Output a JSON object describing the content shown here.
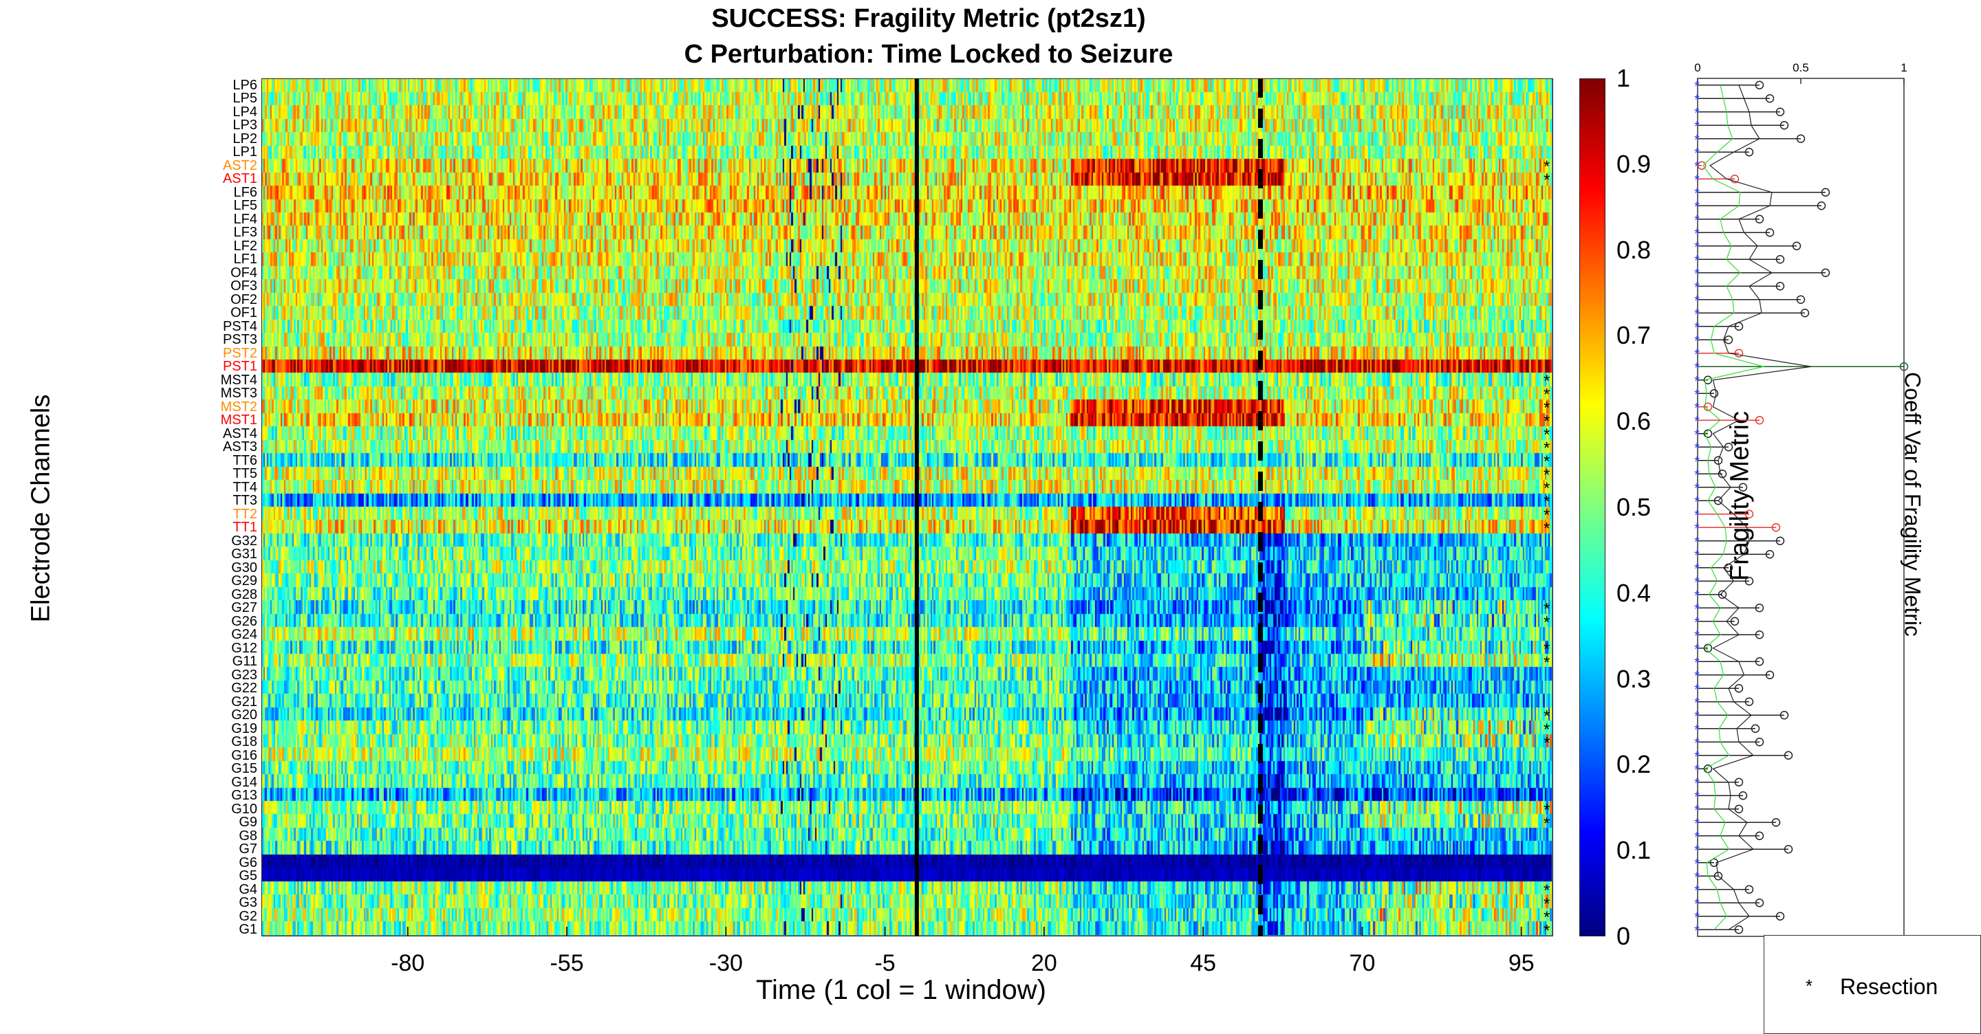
{
  "chart_data": {
    "type": "heatmap",
    "title": "SUCCESS: Fragility Metric (pt2sz1)",
    "subtitle": "C Perturbation:  Time Locked to Seizure",
    "xlabel": "Time (1 col = 1 window)",
    "ylabel": "Electrode Channels",
    "xticks": [
      "-80",
      "-55",
      "-30",
      "-5",
      "20",
      "45",
      "70",
      "95"
    ],
    "xlim": [
      -103,
      100
    ],
    "seizure_onset_marker": 0,
    "seizure_offset_marker": 54,
    "colorbar": {
      "label": "Fragility Metric",
      "ticks": [
        "0",
        "0.1",
        "0.2",
        "0.3",
        "0.4",
        "0.5",
        "0.6",
        "0.7",
        "0.8",
        "0.9",
        "1"
      ],
      "range": [
        0,
        1
      ],
      "colormap": "jet"
    },
    "channels": [
      {
        "name": "LP6",
        "label_color": "#000000",
        "resected": false,
        "base": 0.55,
        "cv": 0.3
      },
      {
        "name": "LP5",
        "label_color": "#000000",
        "resected": false,
        "base": 0.55,
        "cv": 0.35
      },
      {
        "name": "LP4",
        "label_color": "#000000",
        "resected": false,
        "base": 0.58,
        "cv": 0.4
      },
      {
        "name": "LP3",
        "label_color": "#000000",
        "resected": false,
        "base": 0.58,
        "cv": 0.42
      },
      {
        "name": "LP2",
        "label_color": "#000000",
        "resected": false,
        "base": 0.56,
        "cv": 0.5
      },
      {
        "name": "LP1",
        "label_color": "#000000",
        "resected": false,
        "base": 0.54,
        "cv": 0.25
      },
      {
        "name": "AST2",
        "label_color": "#ff8c00",
        "resected": true,
        "base": 0.62,
        "cv": 0.02
      },
      {
        "name": "AST1",
        "label_color": "#ff0000",
        "resected": true,
        "base": 0.62,
        "cv": 0.18
      },
      {
        "name": "LF6",
        "label_color": "#000000",
        "resected": false,
        "base": 0.66,
        "cv": 0.62
      },
      {
        "name": "LF5",
        "label_color": "#000000",
        "resected": false,
        "base": 0.64,
        "cv": 0.6
      },
      {
        "name": "LF4",
        "label_color": "#000000",
        "resected": false,
        "base": 0.62,
        "cv": 0.3
      },
      {
        "name": "LF3",
        "label_color": "#000000",
        "resected": false,
        "base": 0.62,
        "cv": 0.35
      },
      {
        "name": "LF2",
        "label_color": "#000000",
        "resected": false,
        "base": 0.6,
        "cv": 0.48
      },
      {
        "name": "LF1",
        "label_color": "#000000",
        "resected": false,
        "base": 0.6,
        "cv": 0.4
      },
      {
        "name": "OF4",
        "label_color": "#000000",
        "resected": false,
        "base": 0.58,
        "cv": 0.62
      },
      {
        "name": "OF3",
        "label_color": "#000000",
        "resected": false,
        "base": 0.58,
        "cv": 0.4
      },
      {
        "name": "OF2",
        "label_color": "#000000",
        "resected": false,
        "base": 0.57,
        "cv": 0.5
      },
      {
        "name": "OF1",
        "label_color": "#000000",
        "resected": false,
        "base": 0.56,
        "cv": 0.52
      },
      {
        "name": "PST4",
        "label_color": "#000000",
        "resected": false,
        "base": 0.52,
        "cv": 0.2
      },
      {
        "name": "PST3",
        "label_color": "#000000",
        "resected": false,
        "base": 0.55,
        "cv": 0.15
      },
      {
        "name": "PST2",
        "label_color": "#ff8c00",
        "resected": false,
        "base": 0.62,
        "cv": 0.2
      },
      {
        "name": "PST1",
        "label_color": "#ff0000",
        "resected": false,
        "base": 0.9,
        "cv": 1.0
      },
      {
        "name": "MST4",
        "label_color": "#000000",
        "resected": true,
        "base": 0.5,
        "cv": 0.05
      },
      {
        "name": "MST3",
        "label_color": "#000000",
        "resected": true,
        "base": 0.56,
        "cv": 0.08
      },
      {
        "name": "MST2",
        "label_color": "#ff8c00",
        "resected": true,
        "base": 0.6,
        "cv": 0.05
      },
      {
        "name": "MST1",
        "label_color": "#ff0000",
        "resected": true,
        "base": 0.64,
        "cv": 0.3
      },
      {
        "name": "AST4",
        "label_color": "#000000",
        "resected": true,
        "base": 0.52,
        "cv": 0.05
      },
      {
        "name": "AST3",
        "label_color": "#000000",
        "resected": true,
        "base": 0.55,
        "cv": 0.15
      },
      {
        "name": "TT6",
        "label_color": "#000000",
        "resected": true,
        "base": 0.4,
        "cv": 0.1
      },
      {
        "name": "TT5",
        "label_color": "#000000",
        "resected": true,
        "base": 0.58,
        "cv": 0.12
      },
      {
        "name": "TT4",
        "label_color": "#000000",
        "resected": true,
        "base": 0.58,
        "cv": 0.22
      },
      {
        "name": "TT3",
        "label_color": "#000000",
        "resected": true,
        "base": 0.3,
        "cv": 0.1
      },
      {
        "name": "TT2",
        "label_color": "#ff8c00",
        "resected": true,
        "base": 0.55,
        "cv": 0.25
      },
      {
        "name": "TT1",
        "label_color": "#ff0000",
        "resected": true,
        "base": 0.62,
        "cv": 0.38
      },
      {
        "name": "G32",
        "label_color": "#000000",
        "resected": false,
        "base": 0.45,
        "cv": 0.4
      },
      {
        "name": "G31",
        "label_color": "#000000",
        "resected": false,
        "base": 0.48,
        "cv": 0.35
      },
      {
        "name": "G30",
        "label_color": "#000000",
        "resected": false,
        "base": 0.52,
        "cv": 0.15
      },
      {
        "name": "G29",
        "label_color": "#000000",
        "resected": false,
        "base": 0.48,
        "cv": 0.25
      },
      {
        "name": "G28",
        "label_color": "#000000",
        "resected": false,
        "base": 0.46,
        "cv": 0.12
      },
      {
        "name": "G27",
        "label_color": "#000000",
        "resected": true,
        "base": 0.4,
        "cv": 0.3
      },
      {
        "name": "G26",
        "label_color": "#000000",
        "resected": true,
        "base": 0.42,
        "cv": 0.18
      },
      {
        "name": "G24",
        "label_color": "#000000",
        "resected": false,
        "base": 0.55,
        "cv": 0.3
      },
      {
        "name": "G12",
        "label_color": "#000000",
        "resected": true,
        "base": 0.42,
        "cv": 0.05
      },
      {
        "name": "G11",
        "label_color": "#000000",
        "resected": true,
        "base": 0.52,
        "cv": 0.3
      },
      {
        "name": "G23",
        "label_color": "#000000",
        "resected": false,
        "base": 0.45,
        "cv": 0.35
      },
      {
        "name": "G22",
        "label_color": "#000000",
        "resected": false,
        "base": 0.45,
        "cv": 0.2
      },
      {
        "name": "G21",
        "label_color": "#000000",
        "resected": false,
        "base": 0.44,
        "cv": 0.25
      },
      {
        "name": "G20",
        "label_color": "#000000",
        "resected": true,
        "base": 0.4,
        "cv": 0.42
      },
      {
        "name": "G19",
        "label_color": "#000000",
        "resected": true,
        "base": 0.48,
        "cv": 0.28
      },
      {
        "name": "G18",
        "label_color": "#000000",
        "resected": true,
        "base": 0.5,
        "cv": 0.3
      },
      {
        "name": "G16",
        "label_color": "#000000",
        "resected": false,
        "base": 0.55,
        "cv": 0.44
      },
      {
        "name": "G15",
        "label_color": "#000000",
        "resected": false,
        "base": 0.48,
        "cv": 0.05
      },
      {
        "name": "G14",
        "label_color": "#000000",
        "resected": false,
        "base": 0.46,
        "cv": 0.2
      },
      {
        "name": "G13",
        "label_color": "#000000",
        "resected": false,
        "base": 0.32,
        "cv": 0.22
      },
      {
        "name": "G10",
        "label_color": "#000000",
        "resected": true,
        "base": 0.5,
        "cv": 0.2
      },
      {
        "name": "G9",
        "label_color": "#000000",
        "resected": true,
        "base": 0.48,
        "cv": 0.38
      },
      {
        "name": "G8",
        "label_color": "#000000",
        "resected": false,
        "base": 0.46,
        "cv": 0.3
      },
      {
        "name": "G7",
        "label_color": "#000000",
        "resected": false,
        "base": 0.44,
        "cv": 0.44
      },
      {
        "name": "G6",
        "label_color": "#000000",
        "resected": false,
        "base": 0.04,
        "cv": 0.08
      },
      {
        "name": "G5",
        "label_color": "#000000",
        "resected": false,
        "base": 0.06,
        "cv": 0.1
      },
      {
        "name": "G4",
        "label_color": "#000000",
        "resected": true,
        "base": 0.5,
        "cv": 0.25
      },
      {
        "name": "G3",
        "label_color": "#000000",
        "resected": true,
        "base": 0.5,
        "cv": 0.3
      },
      {
        "name": "G2",
        "label_color": "#000000",
        "resected": true,
        "base": 0.52,
        "cv": 0.4
      },
      {
        "name": "G1",
        "label_color": "#000000",
        "resected": true,
        "base": 0.5,
        "cv": 0.2
      }
    ],
    "side_plot": {
      "type": "stem",
      "label": "Coeff Var of Fragility Metric",
      "xticks": [
        "0",
        "0.5",
        "1"
      ],
      "xlim": [
        0,
        1
      ]
    },
    "legend": {
      "entries": [
        {
          "symbol": "*",
          "label": "Resection"
        }
      ],
      "position": "bottom-right"
    }
  }
}
